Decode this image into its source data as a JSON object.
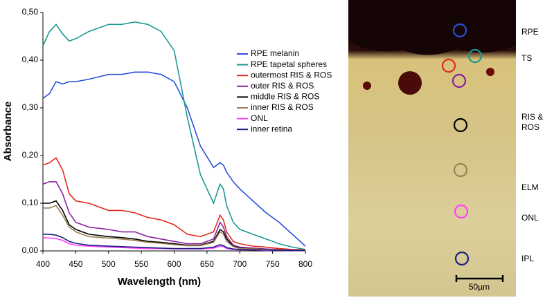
{
  "chart_data": {
    "type": "line",
    "x_label": "Wavelength (nm)",
    "y_label": "Absorbance",
    "x": [
      400,
      410,
      420,
      430,
      440,
      450,
      470,
      500,
      520,
      540,
      560,
      580,
      600,
      620,
      640,
      660,
      670,
      675,
      680,
      690,
      700,
      720,
      740,
      760,
      780,
      800
    ],
    "xlim": [
      400,
      800
    ],
    "xticks": [
      400,
      450,
      500,
      550,
      600,
      650,
      700,
      750,
      800
    ],
    "ylim": [
      0,
      0.5
    ],
    "yticks": [
      {
        "value": 0,
        "label": "0,00"
      },
      {
        "value": 0.1,
        "label": "0,10"
      },
      {
        "value": 0.2,
        "label": "0,20"
      },
      {
        "value": 0.3,
        "label": "0,30"
      },
      {
        "value": 0.4,
        "label": "0,40"
      },
      {
        "value": 0.5,
        "label": "0,50"
      }
    ],
    "grid": false,
    "legend": "upper right",
    "series": [
      {
        "name": "RPE melanin",
        "color": "#2a4fe0",
        "values": [
          0.32,
          0.33,
          0.355,
          0.35,
          0.355,
          0.355,
          0.36,
          0.37,
          0.37,
          0.375,
          0.375,
          0.37,
          0.355,
          0.3,
          0.22,
          0.175,
          0.185,
          0.18,
          0.165,
          0.145,
          0.13,
          0.105,
          0.08,
          0.06,
          0.035,
          0.01
        ]
      },
      {
        "name": "RPE tapetal spheres",
        "color": "#1a9a90",
        "values": [
          0.43,
          0.46,
          0.475,
          0.455,
          0.44,
          0.445,
          0.46,
          0.475,
          0.475,
          0.48,
          0.475,
          0.46,
          0.42,
          0.28,
          0.16,
          0.1,
          0.14,
          0.13,
          0.095,
          0.06,
          0.045,
          0.035,
          0.025,
          0.015,
          0.008,
          0.003
        ]
      },
      {
        "name": "outermost RIS & ROS",
        "color": "#e02a1a",
        "values": [
          0.18,
          0.185,
          0.195,
          0.17,
          0.12,
          0.105,
          0.1,
          0.085,
          0.085,
          0.08,
          0.07,
          0.065,
          0.055,
          0.035,
          0.03,
          0.04,
          0.075,
          0.065,
          0.04,
          0.02,
          0.015,
          0.01,
          0.008,
          0.005,
          0.003,
          0.002
        ]
      },
      {
        "name": "outer RIS & ROS",
        "color": "#8a1fa0",
        "values": [
          0.14,
          0.145,
          0.145,
          0.12,
          0.08,
          0.06,
          0.05,
          0.045,
          0.04,
          0.04,
          0.03,
          0.025,
          0.02,
          0.015,
          0.015,
          0.025,
          0.06,
          0.05,
          0.03,
          0.012,
          0.008,
          0.006,
          0.004,
          0.003,
          0.002,
          0.001
        ]
      },
      {
        "name": "middle RIS & ROS",
        "color": "#000000",
        "values": [
          0.1,
          0.1,
          0.105,
          0.085,
          0.055,
          0.045,
          0.035,
          0.03,
          0.028,
          0.025,
          0.02,
          0.018,
          0.015,
          0.012,
          0.012,
          0.02,
          0.045,
          0.04,
          0.025,
          0.01,
          0.006,
          0.004,
          0.003,
          0.002,
          0.001,
          0.001
        ]
      },
      {
        "name": "inner RIS & ROS",
        "color": "#9a8050",
        "values": [
          0.09,
          0.09,
          0.095,
          0.075,
          0.05,
          0.04,
          0.03,
          0.027,
          0.025,
          0.022,
          0.018,
          0.016,
          0.013,
          0.011,
          0.011,
          0.018,
          0.04,
          0.035,
          0.02,
          0.009,
          0.005,
          0.004,
          0.003,
          0.002,
          0.001,
          0.001
        ]
      },
      {
        "name": "ONL",
        "color": "#ff40ff",
        "values": [
          0.028,
          0.027,
          0.026,
          0.022,
          0.015,
          0.012,
          0.01,
          0.008,
          0.007,
          0.006,
          0.005,
          0.005,
          0.004,
          0.004,
          0.004,
          0.006,
          0.01,
          0.009,
          0.005,
          0.003,
          0.002,
          0.002,
          0.001,
          0.001,
          0.001,
          0.001
        ]
      },
      {
        "name": "inner retina",
        "color": "#1a2080",
        "values": [
          0.035,
          0.035,
          0.033,
          0.028,
          0.02,
          0.016,
          0.012,
          0.01,
          0.009,
          0.008,
          0.007,
          0.006,
          0.005,
          0.005,
          0.005,
          0.008,
          0.013,
          0.011,
          0.007,
          0.004,
          0.003,
          0.002,
          0.002,
          0.001,
          0.001,
          0.001
        ]
      }
    ]
  },
  "image": {
    "labels": [
      "RPE",
      "TS",
      "RIS &",
      "ROS",
      "ELM",
      "ONL",
      "IPL"
    ],
    "scale_bar": "50µm"
  }
}
